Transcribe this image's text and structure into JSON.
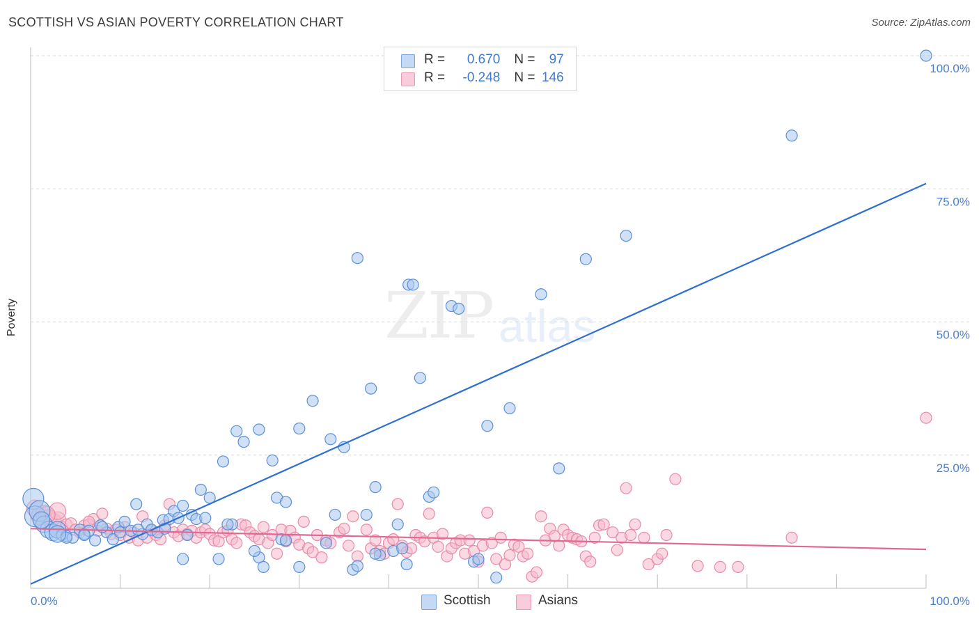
{
  "header": {
    "title": "SCOTTISH VS ASIAN POVERTY CORRELATION CHART",
    "source": "Source: ZipAtlas.com"
  },
  "watermark": {
    "zip": "ZIP",
    "atlas": "atlas"
  },
  "legend": {
    "scottish": {
      "r_label": "R = ",
      "r_value": "0.670",
      "n_label": "N = ",
      "n_value": "97"
    },
    "asians": {
      "r_label": "R = ",
      "r_value": "-0.248",
      "n_label": "N = ",
      "n_value": "146"
    }
  },
  "bottom_legend": {
    "scottish": "Scottish",
    "asians": "Asians"
  },
  "colors": {
    "scottish_fill": "#a9c8f0",
    "scottish_stroke": "#5b8fd6",
    "scottish_line": "#2f6fd0",
    "asians_fill": "#f6b9cc",
    "asians_stroke": "#e88aa8",
    "asians_line": "#e06892",
    "grid": "#d9d9d9",
    "tick_text": "#4a7fd0"
  },
  "chart_data": {
    "type": "scatter",
    "title": "SCOTTISH VS ASIAN POVERTY CORRELATION CHART",
    "xlabel": "",
    "ylabel": "Poverty",
    "xlim": [
      0,
      100
    ],
    "ylim": [
      0,
      100
    ],
    "x_tick_labels": [
      "0.0%",
      "100.0%"
    ],
    "y_ticks": [
      25,
      50,
      75,
      100
    ],
    "y_tick_labels": [
      "25.0%",
      "50.0%",
      "75.0%",
      "100.0%"
    ],
    "grid": true,
    "legend_position": "top-center",
    "series": [
      {
        "name": "Scottish",
        "r": 0.67,
        "n": 97,
        "trend": {
          "x": [
            0,
            100
          ],
          "y": [
            0.8,
            76.0
          ]
        },
        "points": [
          [
            0.3,
            16.8
          ],
          [
            0.5,
            13.5
          ],
          [
            1.0,
            14.5
          ],
          [
            1.5,
            12.0
          ],
          [
            2.0,
            11.0
          ],
          [
            2.5,
            10.5
          ],
          [
            3.0,
            11.0
          ],
          [
            3.5,
            10.0
          ],
          [
            4.0,
            9.8
          ],
          [
            4.7,
            9.5
          ],
          [
            5.5,
            11.0
          ],
          [
            6.0,
            10.2
          ],
          [
            6.5,
            10.8
          ],
          [
            7.2,
            9.0
          ],
          [
            7.8,
            11.8
          ],
          [
            8.5,
            10.5
          ],
          [
            9.2,
            9.2
          ],
          [
            9.8,
            11.5
          ],
          [
            10.5,
            12.5
          ],
          [
            11.2,
            10.8
          ],
          [
            11.8,
            15.8
          ],
          [
            12.5,
            10.2
          ],
          [
            13.0,
            12.0
          ],
          [
            13.5,
            11.0
          ],
          [
            14.2,
            10.5
          ],
          [
            14.8,
            12.8
          ],
          [
            15.5,
            13.0
          ],
          [
            16.0,
            14.5
          ],
          [
            16.5,
            13.2
          ],
          [
            17.0,
            15.5
          ],
          [
            17.5,
            10.0
          ],
          [
            18.0,
            13.8
          ],
          [
            18.5,
            13.0
          ],
          [
            19.5,
            13.2
          ],
          [
            20.0,
            17.0
          ],
          [
            22.5,
            12.0
          ],
          [
            17.0,
            5.5
          ],
          [
            19.0,
            18.5
          ],
          [
            21.5,
            23.8
          ],
          [
            23.0,
            29.5
          ],
          [
            23.8,
            27.5
          ],
          [
            25.5,
            29.8
          ],
          [
            27.0,
            24.0
          ],
          [
            27.5,
            17.0
          ],
          [
            28.5,
            16.2
          ],
          [
            28.0,
            9.2
          ],
          [
            25.5,
            5.8
          ],
          [
            26.0,
            4.0
          ],
          [
            30.0,
            30.0
          ],
          [
            31.5,
            35.2
          ],
          [
            33.5,
            28.0
          ],
          [
            34.0,
            13.8
          ],
          [
            35.0,
            26.5
          ],
          [
            36.0,
            3.5
          ],
          [
            36.5,
            4.2
          ],
          [
            36.5,
            62.0
          ],
          [
            37.5,
            13.8
          ],
          [
            38.0,
            37.5
          ],
          [
            38.5,
            19.0
          ],
          [
            39.0,
            6.2
          ],
          [
            40.5,
            7.0
          ],
          [
            41.0,
            12.0
          ],
          [
            42.0,
            4.5
          ],
          [
            42.2,
            57.0
          ],
          [
            42.7,
            57.0
          ],
          [
            43.5,
            39.5
          ],
          [
            44.5,
            17.2
          ],
          [
            45.0,
            18.0
          ],
          [
            47.0,
            53.0
          ],
          [
            47.8,
            52.5
          ],
          [
            49.5,
            5.0
          ],
          [
            50.0,
            5.5
          ],
          [
            51.0,
            30.5
          ],
          [
            52.0,
            2.0
          ],
          [
            53.5,
            33.8
          ],
          [
            57.0,
            55.2
          ],
          [
            59.0,
            22.5
          ],
          [
            62.0,
            61.8
          ],
          [
            66.5,
            66.2
          ],
          [
            85.0,
            85.0
          ],
          [
            100.0,
            100.0
          ],
          [
            21.0,
            5.5
          ],
          [
            33.0,
            8.5
          ],
          [
            30.0,
            4.0
          ],
          [
            12.0,
            11.0
          ],
          [
            15.0,
            11.2
          ],
          [
            6.0,
            10.0
          ],
          [
            4.0,
            9.5
          ],
          [
            25.0,
            7.0
          ],
          [
            38.5,
            6.5
          ],
          [
            41.5,
            7.5
          ],
          [
            28.5,
            9.0
          ],
          [
            22.0,
            12.0
          ],
          [
            8.0,
            11.5
          ],
          [
            10.0,
            10.5
          ],
          [
            3.0,
            10.2
          ],
          [
            1.2,
            12.8
          ]
        ]
      },
      {
        "name": "Asians",
        "r": -0.248,
        "n": 146,
        "trend": {
          "x": [
            0,
            100
          ],
          "y": [
            11.2,
            7.3
          ]
        },
        "points": [
          [
            0.5,
            15.0
          ],
          [
            1.0,
            13.5
          ],
          [
            1.5,
            14.0
          ],
          [
            2.0,
            13.2
          ],
          [
            2.5,
            12.5
          ],
          [
            3.0,
            12.8
          ],
          [
            3.5,
            11.5
          ],
          [
            4.0,
            12.0
          ],
          [
            4.5,
            12.2
          ],
          [
            5.0,
            11.0
          ],
          [
            5.5,
            10.5
          ],
          [
            6.0,
            11.8
          ],
          [
            6.5,
            12.0
          ],
          [
            7.0,
            13.0
          ],
          [
            7.5,
            10.8
          ],
          [
            8.0,
            14.0
          ],
          [
            8.5,
            11.2
          ],
          [
            9.0,
            10.2
          ],
          [
            9.5,
            11.0
          ],
          [
            10.0,
            10.0
          ],
          [
            10.5,
            11.5
          ],
          [
            11.0,
            9.5
          ],
          [
            11.5,
            10.5
          ],
          [
            12.0,
            9.0
          ],
          [
            12.5,
            13.5
          ],
          [
            13.0,
            9.5
          ],
          [
            13.5,
            10.8
          ],
          [
            14.0,
            10.0
          ],
          [
            14.5,
            9.2
          ],
          [
            15.0,
            11.8
          ],
          [
            15.5,
            15.8
          ],
          [
            16.0,
            10.5
          ],
          [
            16.5,
            9.8
          ],
          [
            17.0,
            11.0
          ],
          [
            17.5,
            10.2
          ],
          [
            18.0,
            10.8
          ],
          [
            18.5,
            9.5
          ],
          [
            19.0,
            10.5
          ],
          [
            19.5,
            11.0
          ],
          [
            20.0,
            10.2
          ],
          [
            20.5,
            9.0
          ],
          [
            21.0,
            8.8
          ],
          [
            21.5,
            10.5
          ],
          [
            22.0,
            10.8
          ],
          [
            22.5,
            9.2
          ],
          [
            23.0,
            8.5
          ],
          [
            23.5,
            12.0
          ],
          [
            24.0,
            11.8
          ],
          [
            24.5,
            10.5
          ],
          [
            25.0,
            9.8
          ],
          [
            25.5,
            9.2
          ],
          [
            26.0,
            11.5
          ],
          [
            26.5,
            8.5
          ],
          [
            27.0,
            10.0
          ],
          [
            27.5,
            6.5
          ],
          [
            28.0,
            11.0
          ],
          [
            28.5,
            8.8
          ],
          [
            29.0,
            10.8
          ],
          [
            29.5,
            9.5
          ],
          [
            30.0,
            8.2
          ],
          [
            30.5,
            12.5
          ],
          [
            31.0,
            7.5
          ],
          [
            31.5,
            6.8
          ],
          [
            32.0,
            10.0
          ],
          [
            32.5,
            5.8
          ],
          [
            33.0,
            9.0
          ],
          [
            33.5,
            8.5
          ],
          [
            34.5,
            10.5
          ],
          [
            35.0,
            11.2
          ],
          [
            35.5,
            8.0
          ],
          [
            36.0,
            13.5
          ],
          [
            36.5,
            6.0
          ],
          [
            37.5,
            11.0
          ],
          [
            38.0,
            7.5
          ],
          [
            38.5,
            9.0
          ],
          [
            39.0,
            7.0
          ],
          [
            39.5,
            6.5
          ],
          [
            40.0,
            8.5
          ],
          [
            40.5,
            9.2
          ],
          [
            41.0,
            15.8
          ],
          [
            41.5,
            8.0
          ],
          [
            42.0,
            6.8
          ],
          [
            42.5,
            7.5
          ],
          [
            43.0,
            10.0
          ],
          [
            43.5,
            9.5
          ],
          [
            44.0,
            8.8
          ],
          [
            44.5,
            14.0
          ],
          [
            45.0,
            9.5
          ],
          [
            45.5,
            7.8
          ],
          [
            46.0,
            10.2
          ],
          [
            46.5,
            6.0
          ],
          [
            47.0,
            7.5
          ],
          [
            47.5,
            8.5
          ],
          [
            48.0,
            9.0
          ],
          [
            48.5,
            6.5
          ],
          [
            49.0,
            9.0
          ],
          [
            49.5,
            7.0
          ],
          [
            50.0,
            5.0
          ],
          [
            50.5,
            8.0
          ],
          [
            51.0,
            14.2
          ],
          [
            51.5,
            8.5
          ],
          [
            52.0,
            5.5
          ],
          [
            52.5,
            9.5
          ],
          [
            53.0,
            4.5
          ],
          [
            53.5,
            6.2
          ],
          [
            54.0,
            8.2
          ],
          [
            54.5,
            7.8
          ],
          [
            55.0,
            6.0
          ],
          [
            55.5,
            6.5
          ],
          [
            56.0,
            2.2
          ],
          [
            56.5,
            3.0
          ],
          [
            57.0,
            13.5
          ],
          [
            57.5,
            9.0
          ],
          [
            58.0,
            11.2
          ],
          [
            58.5,
            9.8
          ],
          [
            59.0,
            8.0
          ],
          [
            59.5,
            11.0
          ],
          [
            60.0,
            10.0
          ],
          [
            60.5,
            9.5
          ],
          [
            61.0,
            9.2
          ],
          [
            61.5,
            8.8
          ],
          [
            62.0,
            6.0
          ],
          [
            62.5,
            5.0
          ],
          [
            63.0,
            9.5
          ],
          [
            63.5,
            11.8
          ],
          [
            64.0,
            12.0
          ],
          [
            65.0,
            10.5
          ],
          [
            65.5,
            7.2
          ],
          [
            66.0,
            9.5
          ],
          [
            66.5,
            18.8
          ],
          [
            67.0,
            10.0
          ],
          [
            67.5,
            12.0
          ],
          [
            68.5,
            9.5
          ],
          [
            69.0,
            4.5
          ],
          [
            70.0,
            5.5
          ],
          [
            70.5,
            6.5
          ],
          [
            71.0,
            10.0
          ],
          [
            72.0,
            20.5
          ],
          [
            74.5,
            4.2
          ],
          [
            77.0,
            4.0
          ],
          [
            79.0,
            4.0
          ],
          [
            85.0,
            9.5
          ],
          [
            100.0,
            32.0
          ],
          [
            3.0,
            14.5
          ],
          [
            6.5,
            12.5
          ],
          [
            1.8,
            13.8
          ]
        ]
      }
    ]
  }
}
